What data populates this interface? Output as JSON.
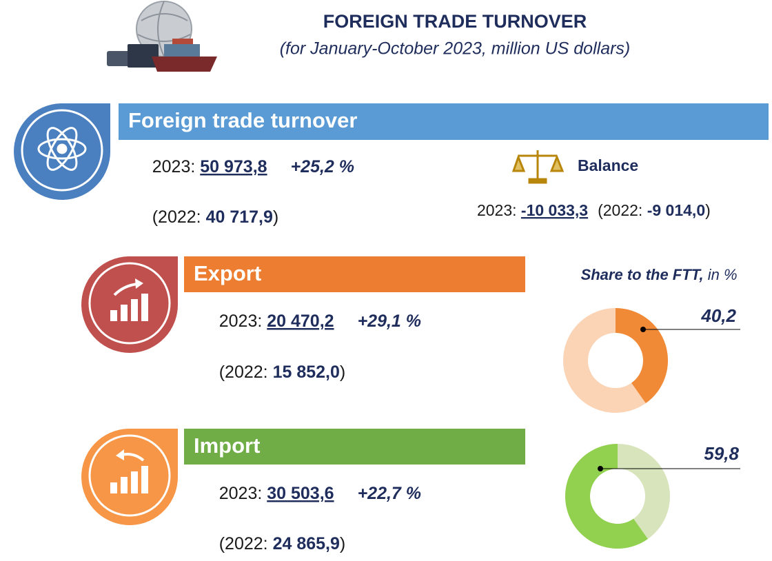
{
  "title": "FOREIGN TRADE TURNOVER",
  "subtitle": "(for January-October 2023, million US dollars)",
  "turnover": {
    "header": "Foreign trade turnover",
    "current_label": "2023: ",
    "current": "50 973,8",
    "growth": "+25,2 %",
    "previous_label": "(2022: ",
    "previous": "40 717,9",
    "close": ")"
  },
  "balance": {
    "header": "Balance",
    "current_label": "2023: ",
    "current": "-10 033,3",
    "previous_label": "(2022: ",
    "previous": "-9 014,0",
    "close": ")"
  },
  "export": {
    "header": "Export",
    "current_label": "2023: ",
    "current": "20 470,2",
    "growth": "+29,1 %",
    "previous_label": "(2022: ",
    "previous": "15 852,0",
    "close": ")"
  },
  "import": {
    "header": "Import",
    "current_label": "2023: ",
    "current": "30 503,6",
    "growth": "+22,7 %",
    "previous_label": "(2022: ",
    "previous": "24 865,9",
    "close": ")"
  },
  "share": {
    "title": "Share to the FTT,",
    "unit": " in %"
  },
  "chart_data": [
    {
      "type": "pie",
      "values": [
        40.2
      ],
      "value_labels": [
        "40,2"
      ],
      "color": "#f08a37",
      "track_color": "#fbd3b5",
      "direction": "clockwise"
    },
    {
      "type": "pie",
      "values": [
        59.8
      ],
      "value_labels": [
        "59,8"
      ],
      "color": "#92d050",
      "track_color": "#d8e4bc",
      "direction": "counterclockwise"
    }
  ]
}
